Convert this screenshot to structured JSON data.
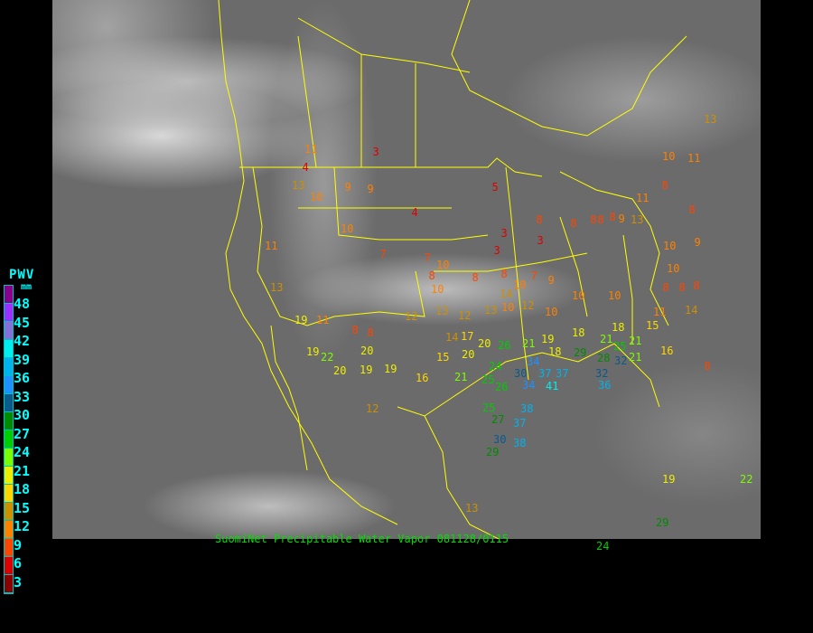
{
  "caption": "SuomiNet Precipitable Water Vapor 081128/0115",
  "legend": {
    "title": "PWV",
    "unit": "mm",
    "labels": [
      "48",
      "45",
      "42",
      "39",
      "36",
      "33",
      "30",
      "27",
      "24",
      "21",
      "18",
      "15",
      "12",
      "9",
      "6",
      "3"
    ],
    "colors": [
      "#8b008b",
      "#9b30ff",
      "#8470d8",
      "#00eeee",
      "#00b2ee",
      "#1e90ff",
      "#0a5a8c",
      "#008b00",
      "#00cd00",
      "#7cfc00",
      "#eeee00",
      "#ffd700",
      "#cd9000",
      "#ff8000",
      "#ff4500",
      "#dd0000",
      "#8b0000"
    ]
  },
  "stations": [
    3,
    4,
    11,
    13,
    10,
    9,
    9,
    4,
    5,
    8,
    3,
    3,
    3,
    8,
    8,
    8,
    8,
    9,
    13,
    11,
    8,
    10,
    11,
    8,
    9,
    10,
    10,
    8,
    8,
    8,
    14,
    13,
    11,
    13,
    10,
    7,
    7,
    8,
    10,
    10,
    8,
    8,
    7,
    9,
    10,
    10,
    13,
    12,
    12,
    13,
    14,
    12,
    10,
    10,
    10,
    11,
    15,
    14,
    17,
    20,
    26,
    21,
    19,
    18,
    18,
    18,
    21,
    21,
    28,
    25,
    21,
    29,
    32,
    32,
    36,
    34,
    37,
    37,
    34,
    41,
    20,
    24,
    25,
    26,
    30,
    21,
    15,
    16,
    12,
    25,
    27,
    38,
    37,
    30,
    38,
    29,
    13,
    8,
    24,
    19,
    22,
    29,
    19,
    11,
    8,
    8,
    19,
    22,
    20,
    20,
    19,
    19,
    16
  ]
}
